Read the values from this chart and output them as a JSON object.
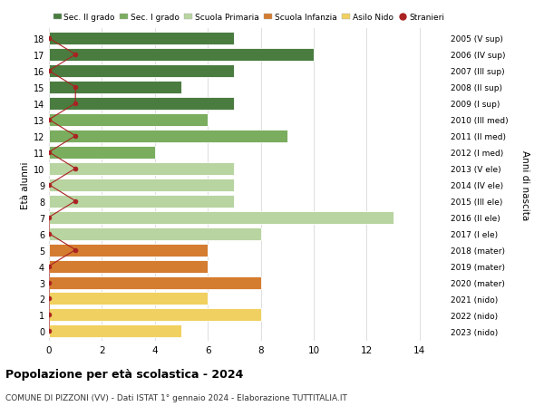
{
  "ages": [
    18,
    17,
    16,
    15,
    14,
    13,
    12,
    11,
    10,
    9,
    8,
    7,
    6,
    5,
    4,
    3,
    2,
    1,
    0
  ],
  "years": [
    "2005 (V sup)",
    "2006 (IV sup)",
    "2007 (III sup)",
    "2008 (II sup)",
    "2009 (I sup)",
    "2010 (III med)",
    "2011 (II med)",
    "2012 (I med)",
    "2013 (V ele)",
    "2014 (IV ele)",
    "2015 (III ele)",
    "2016 (II ele)",
    "2017 (I ele)",
    "2018 (mater)",
    "2019 (mater)",
    "2020 (mater)",
    "2021 (nido)",
    "2022 (nido)",
    "2023 (nido)"
  ],
  "bar_values": [
    7,
    10,
    7,
    5,
    7,
    6,
    9,
    4,
    7,
    7,
    7,
    13,
    8,
    6,
    6,
    8,
    6,
    8,
    5
  ],
  "bar_colors": [
    "#4a7c40",
    "#4a7c40",
    "#4a7c40",
    "#4a7c40",
    "#4a7c40",
    "#7aad5e",
    "#7aad5e",
    "#7aad5e",
    "#b8d4a0",
    "#b8d4a0",
    "#b8d4a0",
    "#b8d4a0",
    "#b8d4a0",
    "#d47c30",
    "#d47c30",
    "#d47c30",
    "#f0d060",
    "#f0d060",
    "#f0d060"
  ],
  "stranieri_values": [
    0,
    1,
    0,
    1,
    1,
    0,
    1,
    0,
    1,
    0,
    1,
    0,
    0,
    1,
    0,
    0,
    0,
    0,
    0
  ],
  "stranieri_color": "#aa2222",
  "title": "Popolazione per età scolastica - 2024",
  "subtitle": "COMUNE DI PIZZONI (VV) - Dati ISTAT 1° gennaio 2024 - Elaborazione TUTTITALIA.IT",
  "ylabel": "Età alunni",
  "y2label": "Anni di nascita",
  "xlim": [
    0,
    15
  ],
  "xticks": [
    0,
    2,
    4,
    6,
    8,
    10,
    12,
    14
  ],
  "legend_labels": [
    "Sec. II grado",
    "Sec. I grado",
    "Scuola Primaria",
    "Scuola Infanzia",
    "Asilo Nido",
    "Stranieri"
  ],
  "legend_colors": [
    "#4a7c40",
    "#7aad5e",
    "#b8d4a0",
    "#d47c30",
    "#f0d060",
    "#aa2222"
  ],
  "background_color": "#ffffff",
  "grid_color": "#dddddd",
  "bar_height": 0.78
}
